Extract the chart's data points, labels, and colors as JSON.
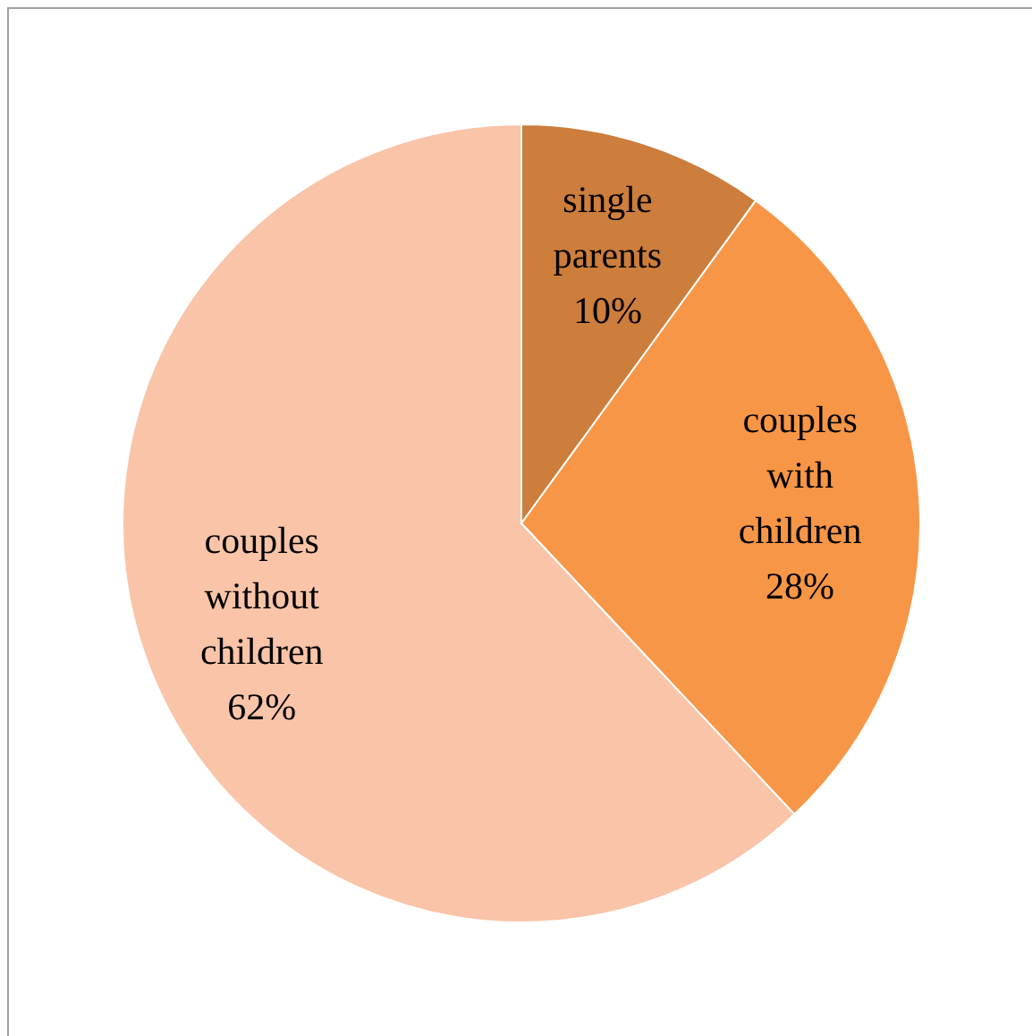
{
  "chart_data": {
    "type": "pie",
    "categories": [
      "single parents",
      "couples with children",
      "couples without children"
    ],
    "values": [
      10,
      28,
      62
    ],
    "colors": [
      "#cd7d3c",
      "#f79646",
      "#f9c4a8"
    ],
    "value_labels": [
      "10%",
      "28%",
      "62%"
    ],
    "legend": false
  }
}
